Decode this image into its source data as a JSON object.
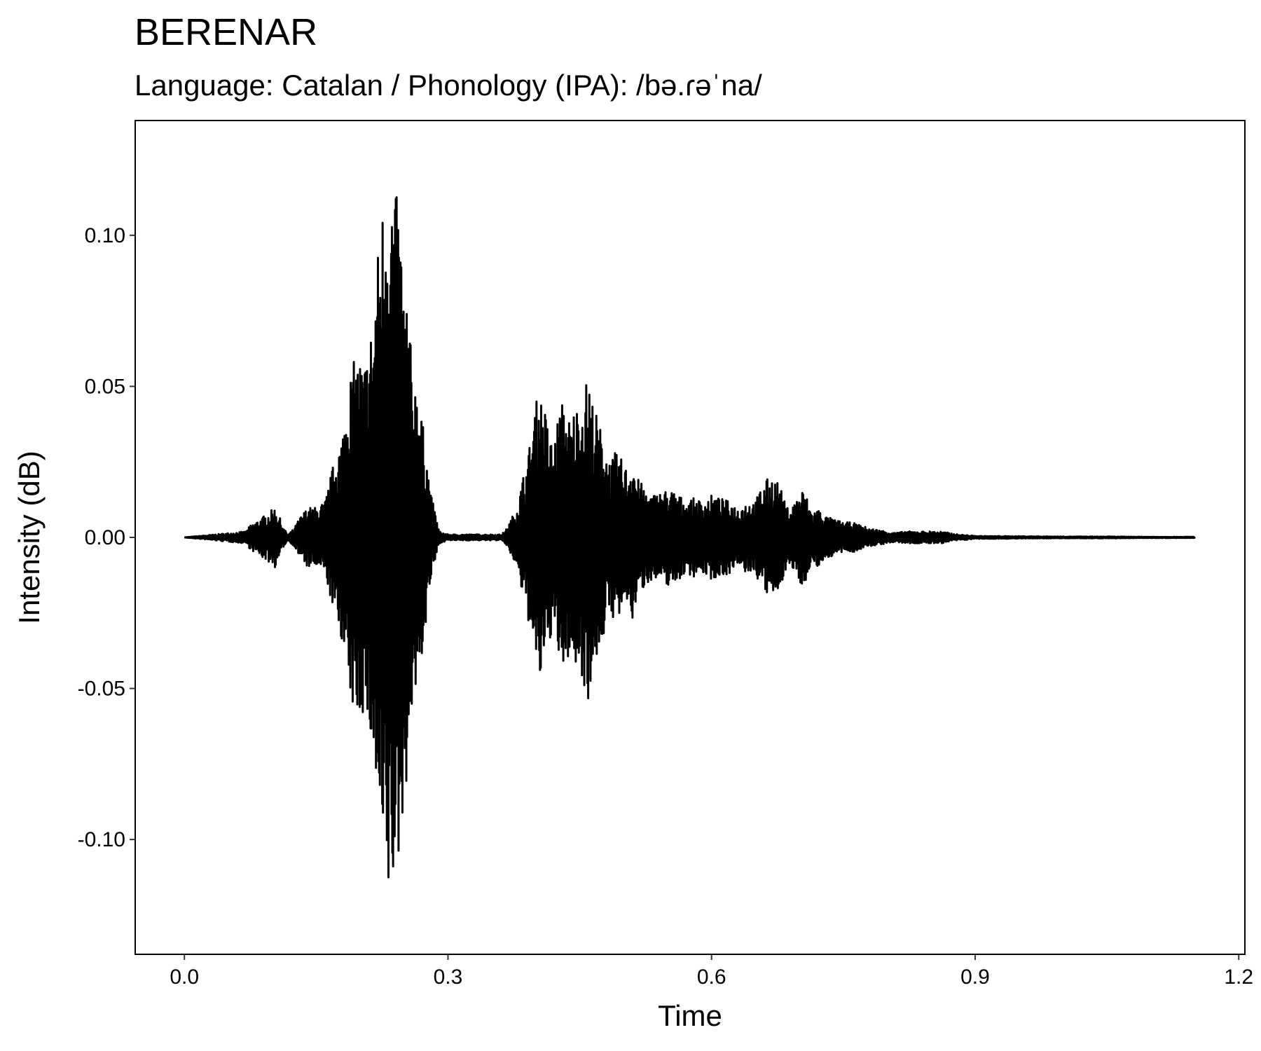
{
  "chart_data": {
    "type": "line",
    "title": "BERENAR",
    "subtitle": "Language: Catalan / Phonology (IPA): /bə.ɾəˈna/",
    "xlabel": "Time",
    "ylabel": "Intensity (dB)",
    "xlim": [
      -0.056,
      1.207
    ],
    "ylim": [
      -0.138,
      0.138
    ],
    "x_ticks": [
      0.0,
      0.3,
      0.6,
      0.9,
      1.2
    ],
    "x_tick_labels": [
      "0.0",
      "0.3",
      "0.6",
      "0.9",
      "1.2"
    ],
    "y_ticks": [
      0.1,
      0.05,
      0.0,
      -0.05,
      -0.1
    ],
    "y_tick_labels": [
      "0.10",
      "0.05",
      "0.00",
      "-0.05",
      "-0.10"
    ],
    "grid": false,
    "line_color": "#000000",
    "series": [
      {
        "x": [
          0.0,
          0.07,
          0.075,
          0.085,
          0.095,
          0.103,
          0.108,
          0.113,
          0.118,
          0.125,
          0.13,
          0.14,
          0.15,
          0.16,
          0.17,
          0.175,
          0.18,
          0.185,
          0.19,
          0.195,
          0.2,
          0.205,
          0.21,
          0.215,
          0.22,
          0.225,
          0.23,
          0.235,
          0.24,
          0.245,
          0.25,
          0.255,
          0.26,
          0.265,
          0.27,
          0.275,
          0.28,
          0.285,
          0.29,
          0.3,
          0.33,
          0.36,
          0.365,
          0.37,
          0.375,
          0.38,
          0.385,
          0.39,
          0.395,
          0.4,
          0.405,
          0.41,
          0.415,
          0.42,
          0.425,
          0.43,
          0.435,
          0.44,
          0.445,
          0.45,
          0.455,
          0.46,
          0.465,
          0.47,
          0.475,
          0.48,
          0.485,
          0.49,
          0.495,
          0.5,
          0.505,
          0.51,
          0.515,
          0.52,
          0.53,
          0.54,
          0.55,
          0.56,
          0.57,
          0.58,
          0.59,
          0.6,
          0.61,
          0.62,
          0.63,
          0.64,
          0.65,
          0.655,
          0.66,
          0.665,
          0.67,
          0.675,
          0.68,
          0.685,
          0.69,
          0.695,
          0.7,
          0.705,
          0.71,
          0.715,
          0.72,
          0.73,
          0.74,
          0.75,
          0.76,
          0.77,
          0.78,
          0.79,
          0.8,
          0.81,
          0.82,
          0.83,
          0.84,
          0.85,
          0.86,
          0.87,
          0.88,
          0.89,
          0.9,
          0.95,
          1.0,
          1.05,
          1.1,
          1.15
        ],
        "y": [
          0.0,
          0.002,
          0.004,
          0.006,
          0.008,
          0.01,
          0.007,
          0.003,
          0.001,
          0.003,
          0.006,
          0.01,
          0.01,
          0.012,
          0.025,
          0.03,
          0.035,
          0.05,
          0.056,
          0.06,
          0.06,
          0.058,
          0.065,
          0.075,
          0.095,
          0.11,
          0.126,
          0.12,
          0.115,
          0.108,
          0.085,
          0.078,
          0.05,
          0.055,
          0.04,
          0.03,
          0.015,
          0.009,
          0.002,
          0.001,
          0.001,
          0.001,
          0.002,
          0.005,
          0.008,
          0.012,
          0.02,
          0.025,
          0.035,
          0.045,
          0.048,
          0.043,
          0.035,
          0.03,
          0.04,
          0.045,
          0.042,
          0.038,
          0.045,
          0.042,
          0.05,
          0.054,
          0.045,
          0.04,
          0.035,
          0.03,
          0.025,
          0.028,
          0.027,
          0.025,
          0.022,
          0.028,
          0.02,
          0.018,
          0.014,
          0.015,
          0.016,
          0.015,
          0.012,
          0.013,
          0.012,
          0.014,
          0.013,
          0.012,
          0.01,
          0.012,
          0.012,
          0.016,
          0.018,
          0.02,
          0.02,
          0.019,
          0.015,
          0.01,
          0.01,
          0.012,
          0.015,
          0.016,
          0.012,
          0.008,
          0.01,
          0.007,
          0.006,
          0.005,
          0.005,
          0.004,
          0.003,
          0.0025,
          0.002,
          0.0015,
          0.002,
          0.002,
          0.002,
          0.002,
          0.002,
          0.0015,
          0.001,
          0.0008,
          0.0005,
          0.0004,
          0.0003,
          0.0003,
          0.0002,
          0.0002
        ]
      }
    ]
  }
}
